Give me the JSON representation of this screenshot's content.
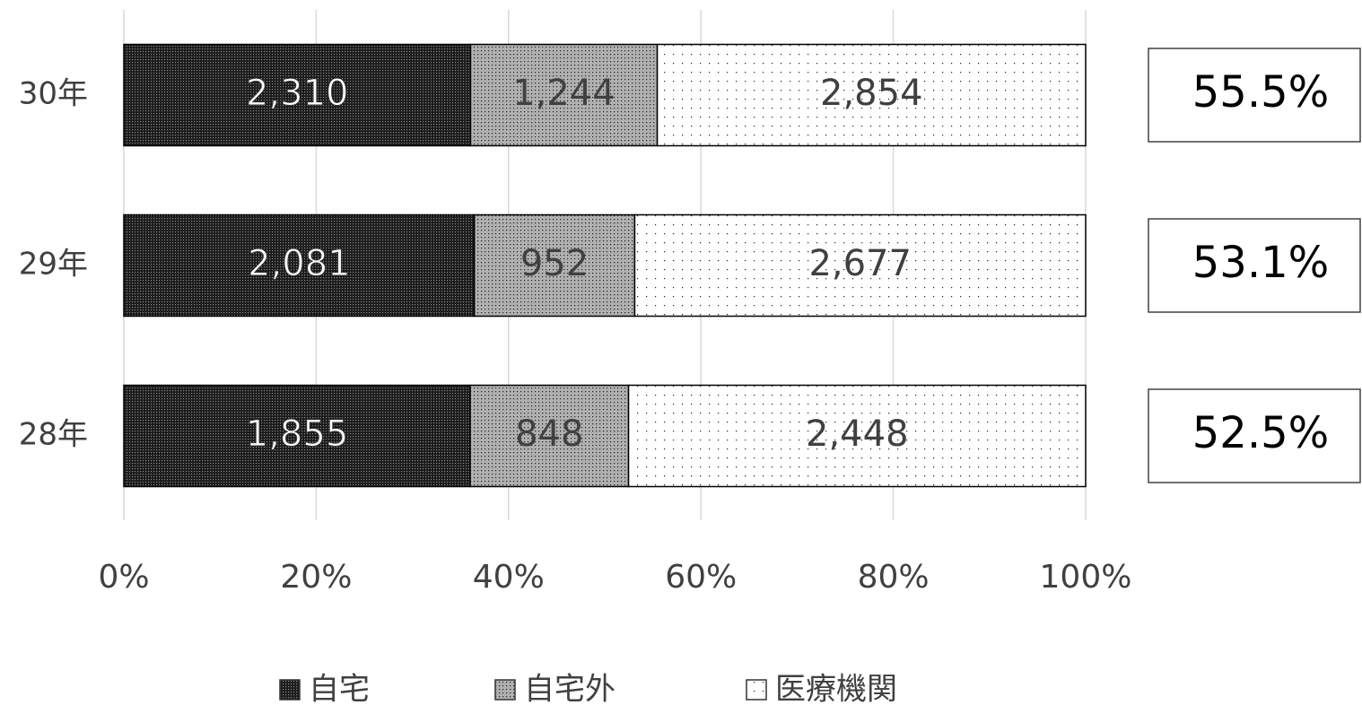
{
  "chart_data": {
    "type": "stacked_bar_100",
    "orientation": "horizontal",
    "categories": [
      "30年",
      "29年",
      "28年"
    ],
    "series": [
      {
        "name": "自宅",
        "color": "#1a1a1a",
        "values": [
          2310,
          2081,
          1855
        ],
        "value_labels": [
          "2,310",
          "2,081",
          "1,855"
        ]
      },
      {
        "name": "自宅外",
        "color": "#b0b0b0",
        "values": [
          1244,
          952,
          848
        ],
        "value_labels": [
          "1,244",
          "952",
          "848"
        ]
      },
      {
        "name": "医療機関",
        "color": "#ffffff",
        "values": [
          2854,
          2677,
          2448
        ],
        "value_labels": [
          "2,854",
          "2,677",
          "2,448"
        ]
      }
    ],
    "annotations": [
      {
        "value": 55.5,
        "label": "55.5%"
      },
      {
        "value": 53.1,
        "label": "53.1%"
      },
      {
        "value": 52.5,
        "label": "52.5%"
      }
    ],
    "xlim": [
      0,
      100
    ],
    "xticks": [
      {
        "value": 0,
        "label": "0%"
      },
      {
        "value": 20,
        "label": "20%"
      },
      {
        "value": 40,
        "label": "40%"
      },
      {
        "value": 60,
        "label": "60%"
      },
      {
        "value": 80,
        "label": "80%"
      },
      {
        "value": 100,
        "label": "100%"
      }
    ],
    "grid": true,
    "legend": "bottom"
  }
}
